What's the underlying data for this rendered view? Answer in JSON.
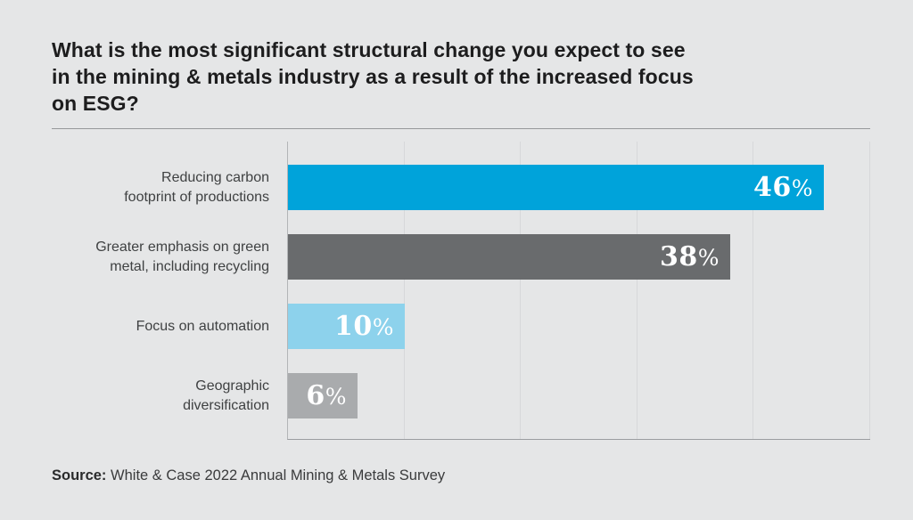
{
  "header": {
    "title": "What is the most significant structural change you expect to see in the mining & metals industry as a result of the increased focus on ESG?",
    "title_lines": [
      "What is the most significant structural change you expect to see",
      "in the mining & metals industry as a result of the increased focus",
      "on ESG?"
    ]
  },
  "chart_data": {
    "type": "bar",
    "orientation": "horizontal",
    "title": "What is the most significant structural change you expect to see in the mining & metals industry as a result of the increased focus on ESG?",
    "xlabel": "",
    "ylabel": "",
    "xlim": [
      0,
      50
    ],
    "xmax": 50,
    "grid": true,
    "grid_step": 10,
    "value_suffix": "%",
    "categories": [
      "Reducing carbon footprint of productions",
      "Greater emphasis on green metal, including recycling",
      "Focus on automation",
      "Geographic diversification"
    ],
    "values": [
      46,
      38,
      10,
      6
    ],
    "rows": [
      {
        "label_lines": [
          "Reducing carbon",
          "footprint of productions"
        ],
        "value": 46,
        "display": "46%",
        "color": "#00a3da"
      },
      {
        "label_lines": [
          "Greater emphasis on green",
          "metal, including recycling"
        ],
        "value": 38,
        "display": "38%",
        "color": "#696b6d"
      },
      {
        "label_lines": [
          "Focus on automation"
        ],
        "value": 10,
        "display": "10%",
        "color": "#8dd2ec"
      },
      {
        "label_lines": [
          "Geographic",
          "diversification"
        ],
        "value": 6,
        "display": "6%",
        "color": "#a9abad"
      }
    ]
  },
  "footer": {
    "source_label": "Source:",
    "source_text": " White & Case 2022 Annual Mining & Metals Survey"
  },
  "colors": {
    "background": "#e5e6e7",
    "bar_blue": "#00a3da",
    "bar_dark_gray": "#696b6d",
    "bar_light_blue": "#8dd2ec",
    "bar_light_gray": "#a9abad",
    "title_text": "#1d1d1e",
    "label_text": "#3f4142",
    "gridline": "#d7d8da",
    "axis_line": "#aeb0b2",
    "value_text": "#ffffff"
  }
}
